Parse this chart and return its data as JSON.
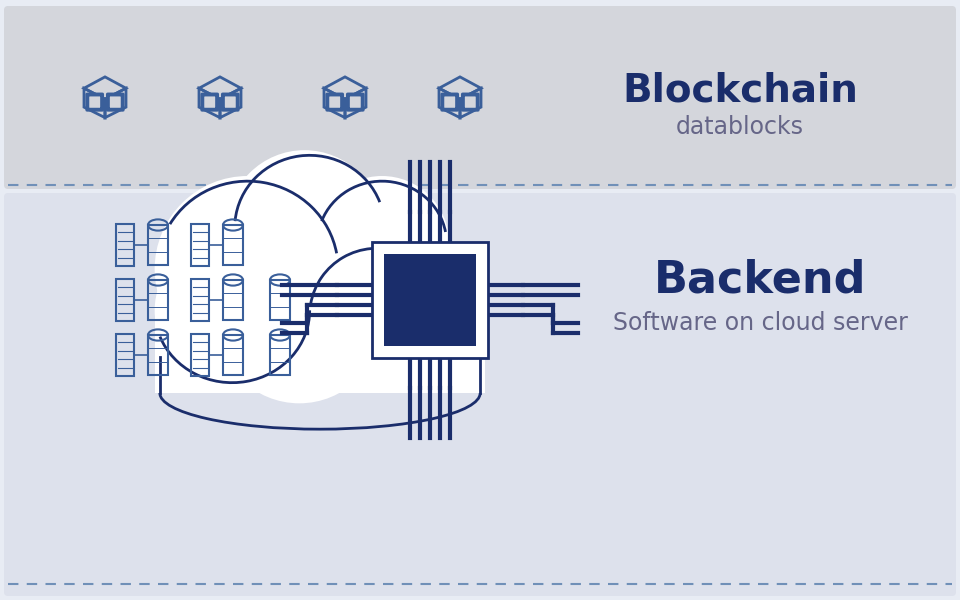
{
  "bg_color": "#e8ecf4",
  "top_panel_color": "#d4d6dc",
  "bottom_panel_color": "#dde1ec",
  "border_color": "#7090b8",
  "dark_blue": "#1a2d6b",
  "chip_dark": "#1a2d6b",
  "chip_light": "#ffffff",
  "icon_blue": "#3a5f9a",
  "blockchain_title": "Blockchain",
  "blockchain_sub": "datablocks",
  "backend_title": "Backend",
  "backend_sub": "Software on cloud server",
  "cloud_fill": "#ffffff",
  "cloud_stroke": "#1a2d6b"
}
